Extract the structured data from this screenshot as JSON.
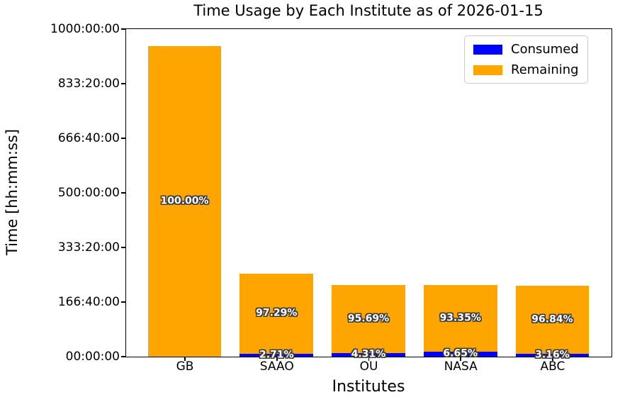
{
  "title": "Time Usage by Each Institute as of 2026-01-15",
  "y_axis": {
    "label": "Time [hh:mm:ss]",
    "ticks": [
      "1000:00:00",
      "833:20:00",
      "666:40:00",
      "500:00:00",
      "333:20:00",
      "166:40:00",
      "00:00:00"
    ]
  },
  "x_axis": {
    "label": "Institutes"
  },
  "legend": {
    "position": "upper right",
    "entries": [
      {
        "label": "Consumed",
        "color": "#0000ff"
      },
      {
        "label": "Remaining",
        "color": "#ffa500"
      }
    ]
  },
  "colors": {
    "consumed": "#0000ff",
    "remaining": "#ffa500",
    "label_fill": "#ffffff",
    "label_outline": "#3d3d3d",
    "axis": "#000000",
    "background": "#ffffff"
  },
  "chart_data": {
    "type": "bar",
    "stacked": true,
    "title": "Time Usage by Each Institute as of 2026-01-15",
    "xlabel": "Institutes",
    "ylabel": "Time [hh:mm:ss]",
    "categories": [
      "GB",
      "SAAO",
      "OU",
      "NASA",
      "ABC"
    ],
    "totals_hours_est": [
      946,
      253,
      217,
      217,
      215
    ],
    "series": [
      {
        "name": "Consumed",
        "color": "#0000ff",
        "pct": [
          0,
          2.71,
          4.31,
          6.65,
          3.16
        ],
        "labels": [
          "",
          "2.71%",
          "4.31%",
          "6.65%",
          "3.16%"
        ]
      },
      {
        "name": "Remaining",
        "color": "#ffa500",
        "pct": [
          100.0,
          97.29,
          95.69,
          93.35,
          96.84
        ],
        "labels": [
          "100.00%",
          "97.29%",
          "95.69%",
          "93.35%",
          "96.84%"
        ]
      }
    ],
    "y_tick_labels": [
      "1000:00:00",
      "833:20:00",
      "666:40:00",
      "500:00:00",
      "333:20:00",
      "166:40:00",
      "00:00:00"
    ],
    "ylim_hours": [
      0,
      1000
    ],
    "grid": false,
    "legend_position": "upper right"
  }
}
